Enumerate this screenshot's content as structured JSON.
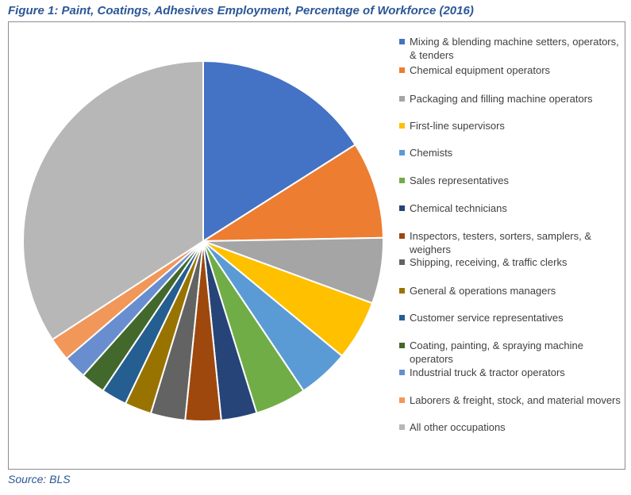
{
  "figure": {
    "title": "Figure 1: Paint, Coatings, Adhesives Employment, Percentage of Workforce (2016)",
    "source": "Source: BLS"
  },
  "chart_data": {
    "type": "pie",
    "title": "Figure 1: Paint, Coatings, Adhesives Employment, Percentage of Workforce (2016)",
    "legend_position": "right",
    "categories": [
      "Mixing & blending machine setters, operators, & tenders",
      "Chemical equipment operators",
      "Packaging and filling machine operators",
      "First-line supervisors",
      "Chemists",
      "Sales representatives",
      "Chemical technicians",
      "Inspectors, testers, sorters, samplers, & weighers",
      "Shipping, receiving, & traffic clerks",
      "General & operations managers",
      "Customer service representatives",
      "Coating, painting, & spraying machine operators",
      "Industrial truck & tractor operators",
      "Laborers & freight, stock, and material movers",
      "All other occupations"
    ],
    "values": [
      16.0,
      8.7,
      5.9,
      5.4,
      4.6,
      4.6,
      3.2,
      3.2,
      3.1,
      2.4,
      2.3,
      2.2,
      2.1,
      2.1,
      34.2
    ],
    "colors": [
      "#4472c4",
      "#ed7d31",
      "#a5a5a5",
      "#ffc000",
      "#5b9bd5",
      "#70ad47",
      "#264478",
      "#9e480e",
      "#636363",
      "#997300",
      "#255e91",
      "#43682b",
      "#698ed0",
      "#f1975a",
      "#b7b7b7"
    ]
  }
}
